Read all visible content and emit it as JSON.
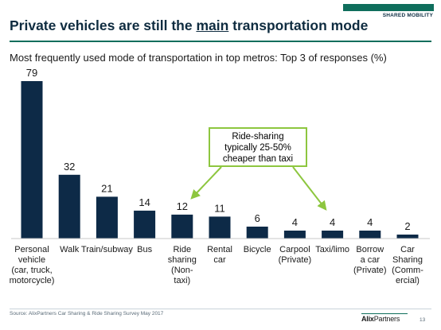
{
  "header": {
    "tag": "SHARED MOBILITY",
    "title_before": "Private vehicles are still the ",
    "title_emph": "main",
    "title_after": " transportation mode",
    "subtitle": "Most frequently used mode of transportation in top metros: Top 3 of responses (%)"
  },
  "colors": {
    "bar": "#0d2a47",
    "brand": "#0f6e5c",
    "callout": "#8dc63f"
  },
  "chart_data": {
    "type": "bar",
    "title": "",
    "xlabel": "",
    "ylabel": "",
    "ylim": [
      0,
      79
    ],
    "grid": false,
    "categories": [
      [
        "Personal",
        "vehicle",
        "(car, truck,",
        "motorcycle)"
      ],
      [
        "Walk"
      ],
      [
        "Train/subway"
      ],
      [
        "Bus"
      ],
      [
        "Ride",
        "sharing",
        "(Non-",
        "taxi)"
      ],
      [
        "Rental",
        "car"
      ],
      [
        "Bicycle"
      ],
      [
        "Carpool",
        "(Private)"
      ],
      [
        "Taxi/limo"
      ],
      [
        "Borrow",
        "a car",
        "(Private)"
      ],
      [
        "Car",
        "Sharing",
        "(Comm-",
        "ercial)"
      ]
    ],
    "values": [
      79,
      32,
      21,
      14,
      12,
      11,
      6,
      4,
      4,
      4,
      2
    ]
  },
  "callout": {
    "lines": [
      "Ride-sharing",
      "typically 25-50%",
      "cheaper than taxi"
    ]
  },
  "footer": {
    "source": "Source: AlixPartners Car Sharing & Ride Sharing Survey May 2017",
    "logo_a": "Alix",
    "logo_b": "Partners",
    "page": "13"
  }
}
